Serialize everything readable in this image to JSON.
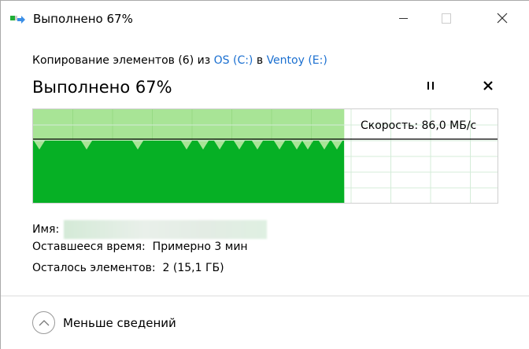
{
  "window": {
    "title": "Выполнено 67%",
    "icon": "file-copy-icon",
    "controls": [
      "minimize-icon",
      "maximize-icon",
      "close-icon"
    ]
  },
  "copy": {
    "prefix": "Копирование элементов (6) из ",
    "source": "OS (C:)",
    "middle": " в ",
    "dest": "Ventoy (E:)"
  },
  "status": {
    "heading": "Выполнено 67%",
    "pause_icon": "pause-icon",
    "cancel_icon": "cancel-icon"
  },
  "graph": {
    "progress_percent": 67,
    "speed_label": "Скорость: 86,0 МБ/с",
    "colors": {
      "done": "#06b025",
      "done_light": "#a8e496",
      "grid": "#d4ecd9",
      "speed_line": "#000000"
    }
  },
  "details": {
    "name_label": "Имя:",
    "time_label": "Оставшееся время:",
    "time_value": "Примерно 3 мин",
    "items_label": "Осталось элементов:",
    "items_value": "2 (15,1 ГБ)"
  },
  "footer": {
    "less_label": "Меньше сведений",
    "icon": "chevron-up-icon"
  }
}
